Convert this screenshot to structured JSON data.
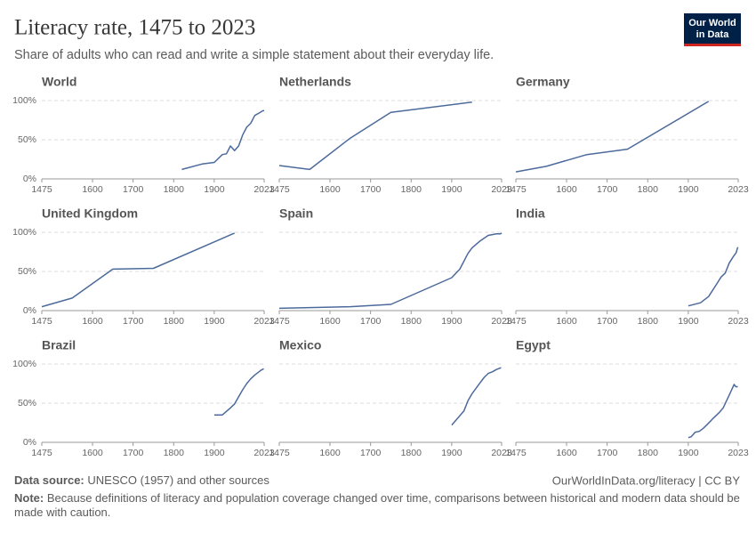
{
  "header": {
    "title": "Literacy rate, 1475 to 2023",
    "subtitle": "Share of adults who can read and write a simple statement about their everyday life.",
    "logo": [
      "Our World",
      "in Data"
    ]
  },
  "footer": {
    "source_label": "Data source:",
    "source": "UNESCO (1957) and other sources",
    "credit": "OurWorldInData.org/literacy | CC BY",
    "note_label": "Note:",
    "note": "Because definitions of literacy and population coverage changed over time, comparisons between historical and modern data should be made with caution."
  },
  "chart_data": [
    {
      "type": "line",
      "title": "World",
      "color": "#4c6a9c",
      "x": [
        1820,
        1870,
        1900,
        1920,
        1930,
        1940,
        1950,
        1960,
        1970,
        1980,
        1990,
        2000,
        2010,
        2020,
        2023
      ],
      "values": [
        12,
        19,
        21,
        31,
        32,
        42,
        36,
        42,
        56,
        66,
        71,
        81,
        84,
        87,
        87
      ],
      "xlim": [
        1475,
        2023
      ],
      "xticks": [
        1475,
        1600,
        1700,
        1800,
        1900,
        2023
      ],
      "ylim": [
        0,
        100
      ],
      "yticks": [
        {
          "value": 0,
          "label": "0%"
        },
        {
          "value": 50,
          "label": "50%"
        },
        {
          "value": 100,
          "label": "100%"
        }
      ]
    },
    {
      "type": "line",
      "title": "Netherlands",
      "color": "#4c6a9c",
      "x": [
        1475,
        1550,
        1650,
        1750,
        1950
      ],
      "values": [
        17,
        12,
        52,
        85,
        98
      ],
      "xlim": [
        1475,
        2023
      ],
      "xticks": [
        1475,
        1600,
        1700,
        1800,
        1900,
        2023
      ],
      "ylim": [
        0,
        100
      ],
      "yticks": [
        0,
        50,
        100
      ]
    },
    {
      "type": "line",
      "title": "Germany",
      "color": "#4c6a9c",
      "x": [
        1475,
        1550,
        1650,
        1750,
        1950
      ],
      "values": [
        9,
        16,
        31,
        38,
        99
      ],
      "xlim": [
        1475,
        2023
      ],
      "xticks": [
        1475,
        1600,
        1700,
        1800,
        1900,
        2023
      ],
      "ylim": [
        0,
        100
      ],
      "yticks": [
        0,
        50,
        100
      ]
    },
    {
      "type": "line",
      "title": "United Kingdom",
      "color": "#4c6a9c",
      "x": [
        1475,
        1550,
        1650,
        1750,
        1950
      ],
      "values": [
        5,
        16,
        53,
        54,
        99
      ],
      "xlim": [
        1475,
        2023
      ],
      "xticks": [
        1475,
        1600,
        1700,
        1800,
        1900,
        2023
      ],
      "ylim": [
        0,
        100
      ],
      "yticks": [
        {
          "value": 0,
          "label": "0%"
        },
        {
          "value": 50,
          "label": "50%"
        },
        {
          "value": 100,
          "label": "100%"
        }
      ]
    },
    {
      "type": "line",
      "title": "Spain",
      "color": "#4c6a9c",
      "x": [
        1475,
        1650,
        1750,
        1900,
        1920,
        1940,
        1950,
        1970,
        1990,
        2000,
        2010,
        2020,
        2023
      ],
      "values": [
        3,
        5,
        8,
        42,
        53,
        73,
        80,
        89,
        96,
        97,
        98,
        98,
        99
      ],
      "xlim": [
        1475,
        2023
      ],
      "xticks": [
        1475,
        1600,
        1700,
        1800,
        1900,
        2023
      ],
      "ylim": [
        0,
        100
      ],
      "yticks": [
        0,
        50,
        100
      ]
    },
    {
      "type": "line",
      "title": "India",
      "color": "#4c6a9c",
      "x": [
        1900,
        1930,
        1950,
        1970,
        1981,
        1991,
        2001,
        2011,
        2018,
        2022
      ],
      "values": [
        6,
        10,
        18,
        34,
        43,
        48,
        61,
        69,
        74,
        81
      ],
      "xlim": [
        1475,
        2023
      ],
      "xticks": [
        1475,
        1600,
        1700,
        1800,
        1900,
        2023
      ],
      "ylim": [
        0,
        100
      ],
      "yticks": [
        0,
        50,
        100
      ]
    },
    {
      "type": "line",
      "title": "Brazil",
      "color": "#4c6a9c",
      "x": [
        1900,
        1920,
        1940,
        1950,
        1970,
        1980,
        1990,
        2000,
        2010,
        2015,
        2022
      ],
      "values": [
        35,
        35,
        44,
        49,
        67,
        75,
        81,
        86,
        90,
        92,
        94
      ],
      "xlim": [
        1475,
        2023
      ],
      "xticks": [
        1475,
        1600,
        1700,
        1800,
        1900,
        2023
      ],
      "ylim": [
        0,
        100
      ],
      "yticks": [
        {
          "value": 0,
          "label": "0%"
        },
        {
          "value": 50,
          "label": "50%"
        },
        {
          "value": 100,
          "label": "100%"
        }
      ]
    },
    {
      "type": "line",
      "title": "Mexico",
      "color": "#4c6a9c",
      "x": [
        1900,
        1930,
        1940,
        1950,
        1970,
        1980,
        1990,
        2000,
        2010,
        2020,
        2022
      ],
      "values": [
        22,
        40,
        53,
        62,
        76,
        83,
        88,
        90,
        93,
        95,
        95
      ],
      "xlim": [
        1475,
        2023
      ],
      "xticks": [
        1475,
        1600,
        1700,
        1800,
        1900,
        2023
      ],
      "ylim": [
        0,
        100
      ],
      "yticks": [
        0,
        50,
        100
      ]
    },
    {
      "type": "line",
      "title": "Egypt",
      "color": "#4c6a9c",
      "x": [
        1900,
        1907,
        1917,
        1927,
        1937,
        1947,
        1960,
        1976,
        1986,
        1996,
        2006,
        2013,
        2017,
        2022
      ],
      "values": [
        6,
        7,
        13,
        14,
        18,
        23,
        30,
        38,
        44,
        55,
        66,
        74,
        71,
        71
      ],
      "xlim": [
        1475,
        2023
      ],
      "xticks": [
        1475,
        1600,
        1700,
        1800,
        1900,
        2023
      ],
      "ylim": [
        0,
        100
      ],
      "yticks": [
        0,
        50,
        100
      ]
    }
  ]
}
